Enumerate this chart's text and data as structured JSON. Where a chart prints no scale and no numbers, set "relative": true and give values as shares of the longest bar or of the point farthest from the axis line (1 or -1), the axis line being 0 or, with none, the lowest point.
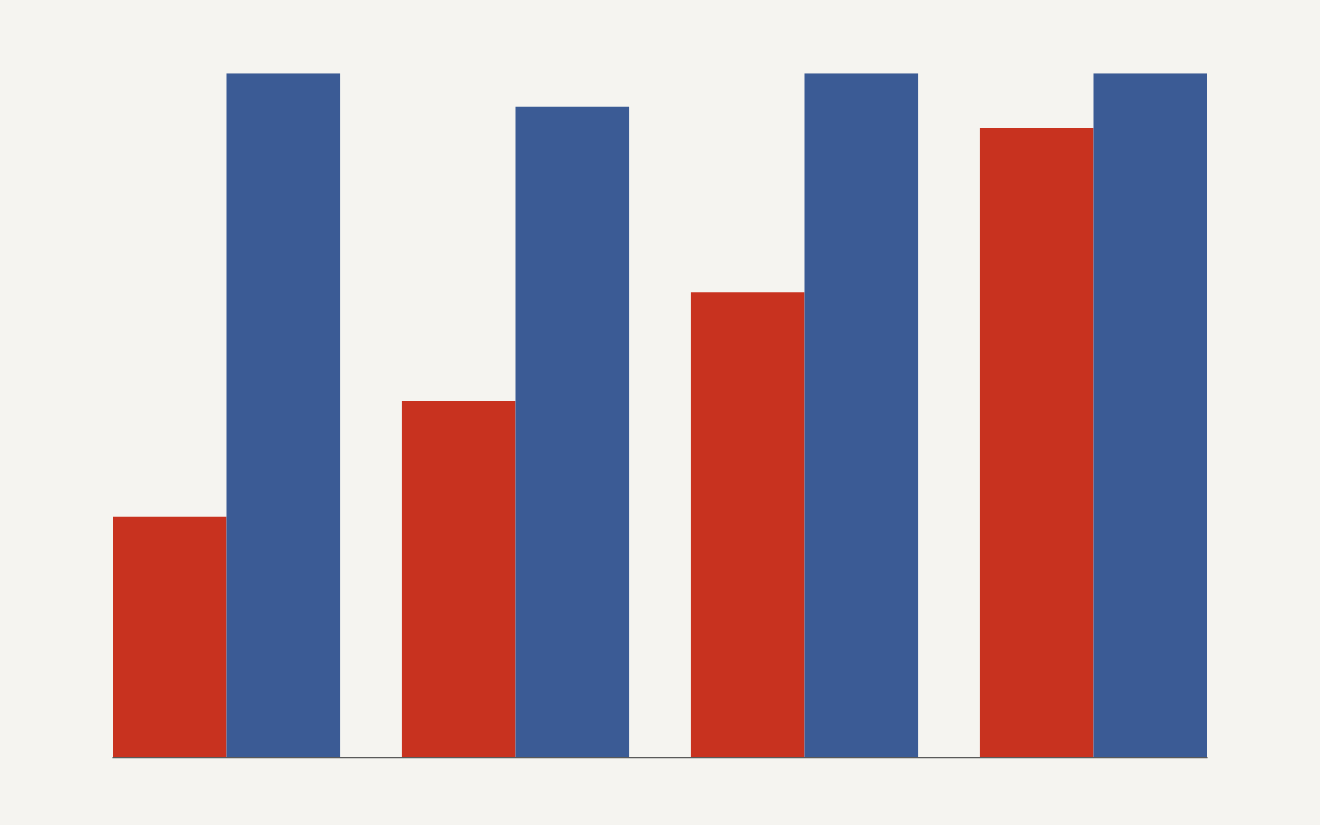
{
  "chart_data": {
    "type": "bar",
    "relative": true,
    "tick_labels": false,
    "categories": [
      null,
      null,
      null,
      null
    ],
    "series": [
      {
        "color": "#c8321f",
        "values": [
          0.352,
          0.521,
          0.68,
          0.92
        ]
      },
      {
        "color": "#3b5b95",
        "values": [
          1.0,
          0.951,
          1.0,
          1.0
        ]
      }
    ]
  }
}
